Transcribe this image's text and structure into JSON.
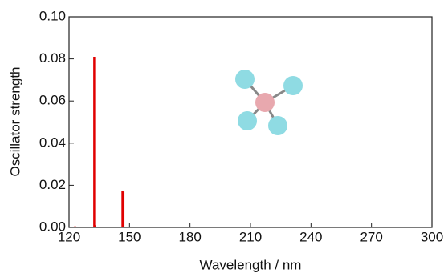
{
  "chart_data": {
    "type": "stick",
    "xlabel": "Wavelength / nm",
    "ylabel": "Oscillator strength",
    "x": [
      123,
      132.5,
      133,
      146.5,
      147
    ],
    "series": [
      {
        "color": "#e00000",
        "values": [
          0.0005,
          0.081,
          0.001,
          0.0175,
          0.017
        ]
      }
    ],
    "xlim": [
      120,
      300
    ],
    "xticks": [
      120,
      150,
      180,
      210,
      240,
      270,
      300
    ],
    "ylim": [
      0,
      0.1
    ],
    "yticks": [
      {
        "value": 0,
        "label": "0.00"
      },
      0.02,
      0.04,
      0.06,
      0.08,
      {
        "value": 0.1,
        "label": "0.10"
      }
    ]
  }
}
